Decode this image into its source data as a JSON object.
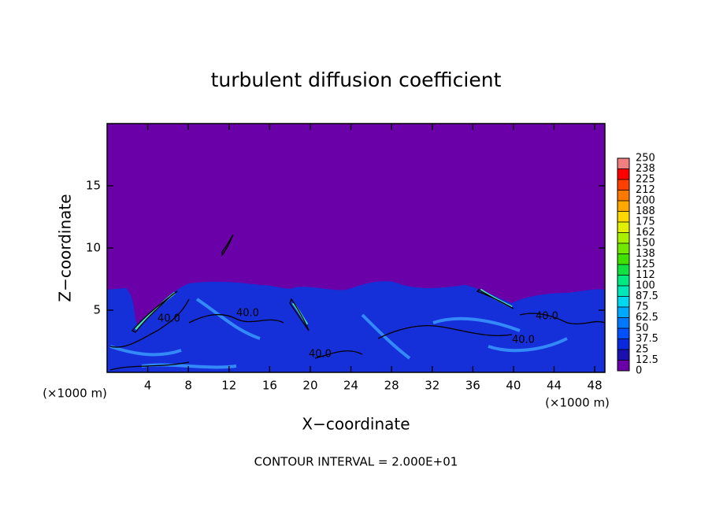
{
  "chart_data": {
    "type": "contour",
    "title": "turbulent diffusion coefficient",
    "xlabel": "X−coordinate",
    "ylabel": "Z−coordinate",
    "x_unit": "(×1000 m)",
    "note": "CONTOUR INTERVAL = 2.000E+01",
    "contour_label": "40.0",
    "xlim": [
      0,
      49
    ],
    "xticks": [
      4,
      8,
      12,
      16,
      20,
      24,
      28,
      32,
      36,
      40,
      44,
      48
    ],
    "ylim": [
      0,
      20
    ],
    "yticks": [
      5,
      10,
      15
    ],
    "colorbar": {
      "ticks": [
        0,
        12.5,
        25,
        37.5,
        50,
        62.5,
        75,
        87.5,
        100,
        {
          "value": 112.5,
          "label": "112"
        },
        125,
        {
          "value": 137.5,
          "label": "138"
        },
        150,
        {
          "value": 162.5,
          "label": "162"
        },
        175,
        {
          "value": 187.5,
          "label": "188"
        },
        200,
        {
          "value": 212.5,
          "label": "212"
        },
        225,
        {
          "value": 237.5,
          "label": "238"
        },
        250
      ],
      "colors": [
        "#6a00a8",
        "#1a10b0",
        "#0a28e0",
        "#0050ff",
        "#0078ff",
        "#00a8ff",
        "#00d8f0",
        "#00e8b8",
        "#00e880",
        "#10e040",
        "#40e000",
        "#70e800",
        "#a8f000",
        "#e0f000",
        "#ffd800",
        "#ffa800",
        "#ff7800",
        "#ff4000",
        "#ff0000",
        "#f08080"
      ]
    }
  }
}
